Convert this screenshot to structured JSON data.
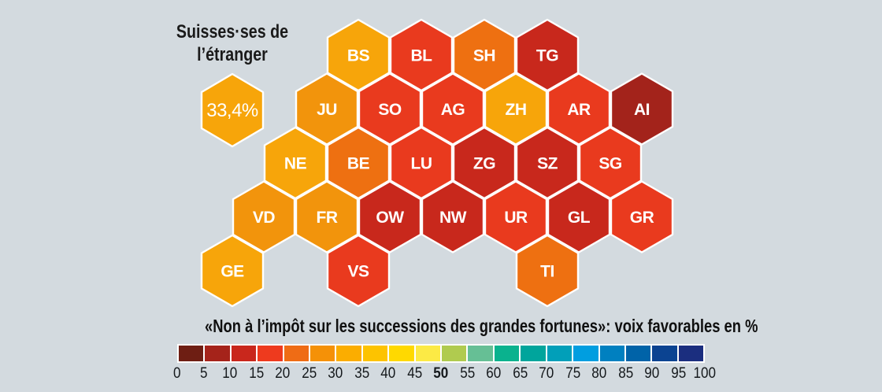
{
  "background_color": "#D3DADF",
  "annotation": {
    "title_line1": "Suisses·ses de",
    "title_line2": "l’étranger",
    "value": "33,4%",
    "color": "#F7A50A"
  },
  "caption": "«Non à l’impôt sur les successions des grandes fortunes»: voix favorables en %",
  "chart_data": {
    "type": "heatmap",
    "subtype": "hexagonal-cartogram-switzerland",
    "title": "«Non à l’impôt sur les successions des grandes fortunes»: voix favorables en %",
    "unit": "%",
    "annotation": {
      "label": "Suisses·ses de l’étranger",
      "value_pct": 33.4,
      "color": "#F7A50A"
    },
    "legend": {
      "position": "bottom",
      "tick_labels": [
        "0",
        "5",
        "10",
        "15",
        "20",
        "25",
        "30",
        "35",
        "40",
        "45",
        "50",
        "55",
        "60",
        "65",
        "70",
        "75",
        "80",
        "85",
        "90",
        "95",
        "100"
      ],
      "bold_tick": "50",
      "colors": [
        "#6E1E13",
        "#A5231A",
        "#C9271C",
        "#EE3A1E",
        "#EF6C15",
        "#F59107",
        "#FBAD00",
        "#FDC300",
        "#FFD900",
        "#FCEA45",
        "#B0CB4F",
        "#66BF95",
        "#0AB28E",
        "#00A59C",
        "#019FB9",
        "#009EE0",
        "#0080C0",
        "#0063A8",
        "#0B4391",
        "#1B2E7F"
      ]
    },
    "cantons": [
      {
        "code": "BS",
        "row": 0,
        "col": 0,
        "color": "#F7A50A",
        "range_pct": "30–35"
      },
      {
        "code": "BL",
        "row": 0,
        "col": 1,
        "color": "#E93A1E",
        "range_pct": "15–20"
      },
      {
        "code": "SH",
        "row": 0,
        "col": 2,
        "color": "#EE7011",
        "range_pct": "20–25"
      },
      {
        "code": "TG",
        "row": 0,
        "col": 3,
        "color": "#C8281C",
        "range_pct": "10–15"
      },
      {
        "code": "JU",
        "row": 1,
        "col": 0,
        "color": "#F2940C",
        "range_pct": "25–30"
      },
      {
        "code": "SO",
        "row": 1,
        "col": 1,
        "color": "#E93A1E",
        "range_pct": "15–20"
      },
      {
        "code": "AG",
        "row": 1,
        "col": 2,
        "color": "#E93A1E",
        "range_pct": "15–20"
      },
      {
        "code": "ZH",
        "row": 1,
        "col": 3,
        "color": "#F7A50A",
        "range_pct": "30–35"
      },
      {
        "code": "AR",
        "row": 1,
        "col": 4,
        "color": "#E93A1E",
        "range_pct": "15–20"
      },
      {
        "code": "AI",
        "row": 1,
        "col": 5,
        "color": "#A3231B",
        "range_pct": "5–10"
      },
      {
        "code": "NE",
        "row": 2,
        "col": 0,
        "color": "#F7A50A",
        "range_pct": "30–35"
      },
      {
        "code": "BE",
        "row": 2,
        "col": 1,
        "color": "#EE7011",
        "range_pct": "20–25"
      },
      {
        "code": "LU",
        "row": 2,
        "col": 2,
        "color": "#E93A1E",
        "range_pct": "15–20"
      },
      {
        "code": "ZG",
        "row": 2,
        "col": 3,
        "color": "#C8281C",
        "range_pct": "10–15"
      },
      {
        "code": "SZ",
        "row": 2,
        "col": 4,
        "color": "#C8281C",
        "range_pct": "10–15"
      },
      {
        "code": "SG",
        "row": 2,
        "col": 5,
        "color": "#E93A1E",
        "range_pct": "15–20"
      },
      {
        "code": "VD",
        "row": 3,
        "col": 0,
        "color": "#F2940C",
        "range_pct": "25–30"
      },
      {
        "code": "FR",
        "row": 3,
        "col": 1,
        "color": "#F2940C",
        "range_pct": "25–30"
      },
      {
        "code": "OW",
        "row": 3,
        "col": 2,
        "color": "#C8281C",
        "range_pct": "10–15"
      },
      {
        "code": "NW",
        "row": 3,
        "col": 3,
        "color": "#C8281C",
        "range_pct": "10–15"
      },
      {
        "code": "UR",
        "row": 3,
        "col": 4,
        "color": "#E93A1E",
        "range_pct": "15–20"
      },
      {
        "code": "GL",
        "row": 3,
        "col": 5,
        "color": "#C8281C",
        "range_pct": "10–15"
      },
      {
        "code": "GR",
        "row": 3,
        "col": 6,
        "color": "#E93A1E",
        "range_pct": "15–20"
      },
      {
        "code": "GE",
        "row": 4,
        "col": 0,
        "color": "#F7A50A",
        "range_pct": "30–35"
      },
      {
        "code": "VS",
        "row": 4,
        "col": 2,
        "color": "#E93A1E",
        "range_pct": "15–20"
      },
      {
        "code": "TI",
        "row": 4,
        "col": 5,
        "color": "#EE7011",
        "range_pct": "20–25"
      }
    ]
  }
}
